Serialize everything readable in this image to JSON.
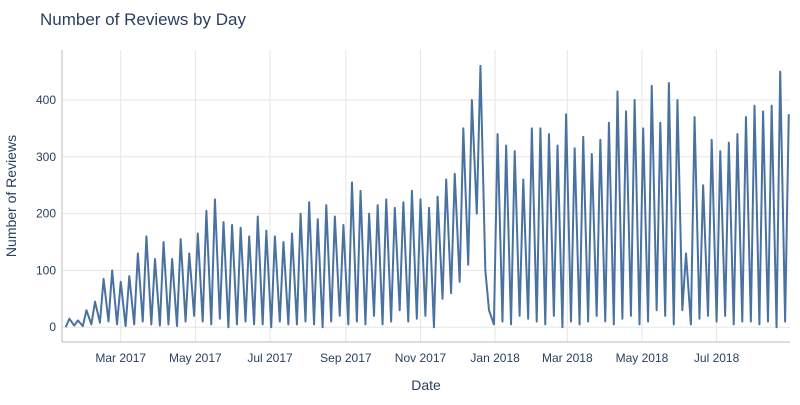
{
  "chart_data": {
    "type": "line",
    "title": "Number of Reviews by Day",
    "x_label": "Date",
    "y_label": "Number of Reviews",
    "color": "#4a72a0",
    "grid": true,
    "xlim": [
      "2017-01-12",
      "2018-08-30"
    ],
    "ylim": [
      -26,
      488
    ],
    "yticks": [
      0,
      100,
      200,
      300,
      400
    ],
    "xticks": [
      {
        "value": "2017-03-01",
        "label": "Mar 2017"
      },
      {
        "value": "2017-05-01",
        "label": "May 2017"
      },
      {
        "value": "2017-07-01",
        "label": "Jul 2017"
      },
      {
        "value": "2017-09-01",
        "label": "Sep 2017"
      },
      {
        "value": "2017-11-01",
        "label": "Nov 2017"
      },
      {
        "value": "2018-01-01",
        "label": "Jan 2018"
      },
      {
        "value": "2018-03-01",
        "label": "Mar 2018"
      },
      {
        "value": "2018-05-01",
        "label": "May 2018"
      },
      {
        "value": "2018-07-01",
        "label": "Jul 2018"
      }
    ],
    "x": [
      "2017-01-15",
      "2017-01-18",
      "2017-01-22",
      "2017-01-25",
      "2017-01-29",
      "2017-02-01",
      "2017-02-05",
      "2017-02-08",
      "2017-02-12",
      "2017-02-15",
      "2017-02-19",
      "2017-02-22",
      "2017-02-26",
      "2017-03-01",
      "2017-03-05",
      "2017-03-08",
      "2017-03-12",
      "2017-03-15",
      "2017-03-19",
      "2017-03-22",
      "2017-03-26",
      "2017-03-29",
      "2017-04-02",
      "2017-04-05",
      "2017-04-09",
      "2017-04-12",
      "2017-04-16",
      "2017-04-19",
      "2017-04-23",
      "2017-04-26",
      "2017-04-30",
      "2017-05-03",
      "2017-05-07",
      "2017-05-10",
      "2017-05-14",
      "2017-05-17",
      "2017-05-21",
      "2017-05-24",
      "2017-05-28",
      "2017-05-31",
      "2017-06-04",
      "2017-06-07",
      "2017-06-11",
      "2017-06-14",
      "2017-06-18",
      "2017-06-21",
      "2017-06-25",
      "2017-06-28",
      "2017-07-02",
      "2017-07-05",
      "2017-07-09",
      "2017-07-12",
      "2017-07-16",
      "2017-07-19",
      "2017-07-23",
      "2017-07-26",
      "2017-07-30",
      "2017-08-02",
      "2017-08-06",
      "2017-08-09",
      "2017-08-13",
      "2017-08-16",
      "2017-08-20",
      "2017-08-23",
      "2017-08-27",
      "2017-08-30",
      "2017-09-03",
      "2017-09-06",
      "2017-09-10",
      "2017-09-13",
      "2017-09-17",
      "2017-09-20",
      "2017-09-24",
      "2017-09-27",
      "2017-10-01",
      "2017-10-04",
      "2017-10-08",
      "2017-10-11",
      "2017-10-15",
      "2017-10-18",
      "2017-10-22",
      "2017-10-25",
      "2017-10-29",
      "2017-11-01",
      "2017-11-05",
      "2017-11-08",
      "2017-11-12",
      "2017-11-15",
      "2017-11-19",
      "2017-11-22",
      "2017-11-26",
      "2017-11-29",
      "2017-12-03",
      "2017-12-06",
      "2017-12-10",
      "2017-12-13",
      "2017-12-17",
      "2017-12-20",
      "2017-12-24",
      "2017-12-27",
      "2017-12-31",
      "2018-01-03",
      "2018-01-07",
      "2018-01-10",
      "2018-01-14",
      "2018-01-17",
      "2018-01-21",
      "2018-01-24",
      "2018-01-28",
      "2018-01-31",
      "2018-02-04",
      "2018-02-07",
      "2018-02-11",
      "2018-02-14",
      "2018-02-18",
      "2018-02-21",
      "2018-02-25",
      "2018-02-28",
      "2018-03-04",
      "2018-03-07",
      "2018-03-11",
      "2018-03-14",
      "2018-03-18",
      "2018-03-21",
      "2018-03-25",
      "2018-03-28",
      "2018-04-01",
      "2018-04-04",
      "2018-04-08",
      "2018-04-11",
      "2018-04-15",
      "2018-04-18",
      "2018-04-22",
      "2018-04-25",
      "2018-04-29",
      "2018-05-02",
      "2018-05-06",
      "2018-05-09",
      "2018-05-13",
      "2018-05-16",
      "2018-05-20",
      "2018-05-23",
      "2018-05-27",
      "2018-05-30",
      "2018-06-03",
      "2018-06-06",
      "2018-06-10",
      "2018-06-13",
      "2018-06-17",
      "2018-06-20",
      "2018-06-24",
      "2018-06-27",
      "2018-07-01",
      "2018-07-04",
      "2018-07-08",
      "2018-07-11",
      "2018-07-15",
      "2018-07-18",
      "2018-07-22",
      "2018-07-25",
      "2018-07-29",
      "2018-08-01",
      "2018-08-05",
      "2018-08-08",
      "2018-08-12",
      "2018-08-15",
      "2018-08-19",
      "2018-08-22",
      "2018-08-26",
      "2018-08-29"
    ],
    "values": [
      0,
      15,
      3,
      12,
      2,
      30,
      5,
      45,
      8,
      85,
      10,
      100,
      5,
      80,
      2,
      90,
      5,
      130,
      10,
      160,
      5,
      120,
      3,
      150,
      5,
      120,
      2,
      155,
      10,
      130,
      20,
      165,
      10,
      205,
      5,
      225,
      15,
      185,
      0,
      180,
      5,
      175,
      10,
      160,
      5,
      195,
      5,
      170,
      0,
      160,
      10,
      150,
      5,
      165,
      5,
      200,
      10,
      220,
      5,
      190,
      0,
      215,
      10,
      195,
      20,
      180,
      5,
      255,
      10,
      240,
      5,
      200,
      20,
      215,
      5,
      225,
      10,
      210,
      30,
      220,
      10,
      240,
      15,
      225,
      20,
      210,
      0,
      230,
      50,
      260,
      60,
      270,
      80,
      350,
      110,
      400,
      200,
      460,
      100,
      30,
      5,
      340,
      10,
      320,
      5,
      310,
      20,
      260,
      15,
      350,
      10,
      350,
      5,
      340,
      20,
      320,
      0,
      375,
      10,
      315,
      5,
      335,
      10,
      305,
      20,
      330,
      10,
      360,
      5,
      415,
      15,
      380,
      20,
      400,
      5,
      350,
      10,
      425,
      30,
      360,
      20,
      430,
      5,
      400,
      30,
      130,
      5,
      370,
      15,
      250,
      20,
      330,
      10,
      310,
      20,
      325,
      5,
      340,
      10,
      370,
      10,
      390,
      5,
      380,
      10,
      390,
      0,
      450,
      10,
      375
    ]
  }
}
